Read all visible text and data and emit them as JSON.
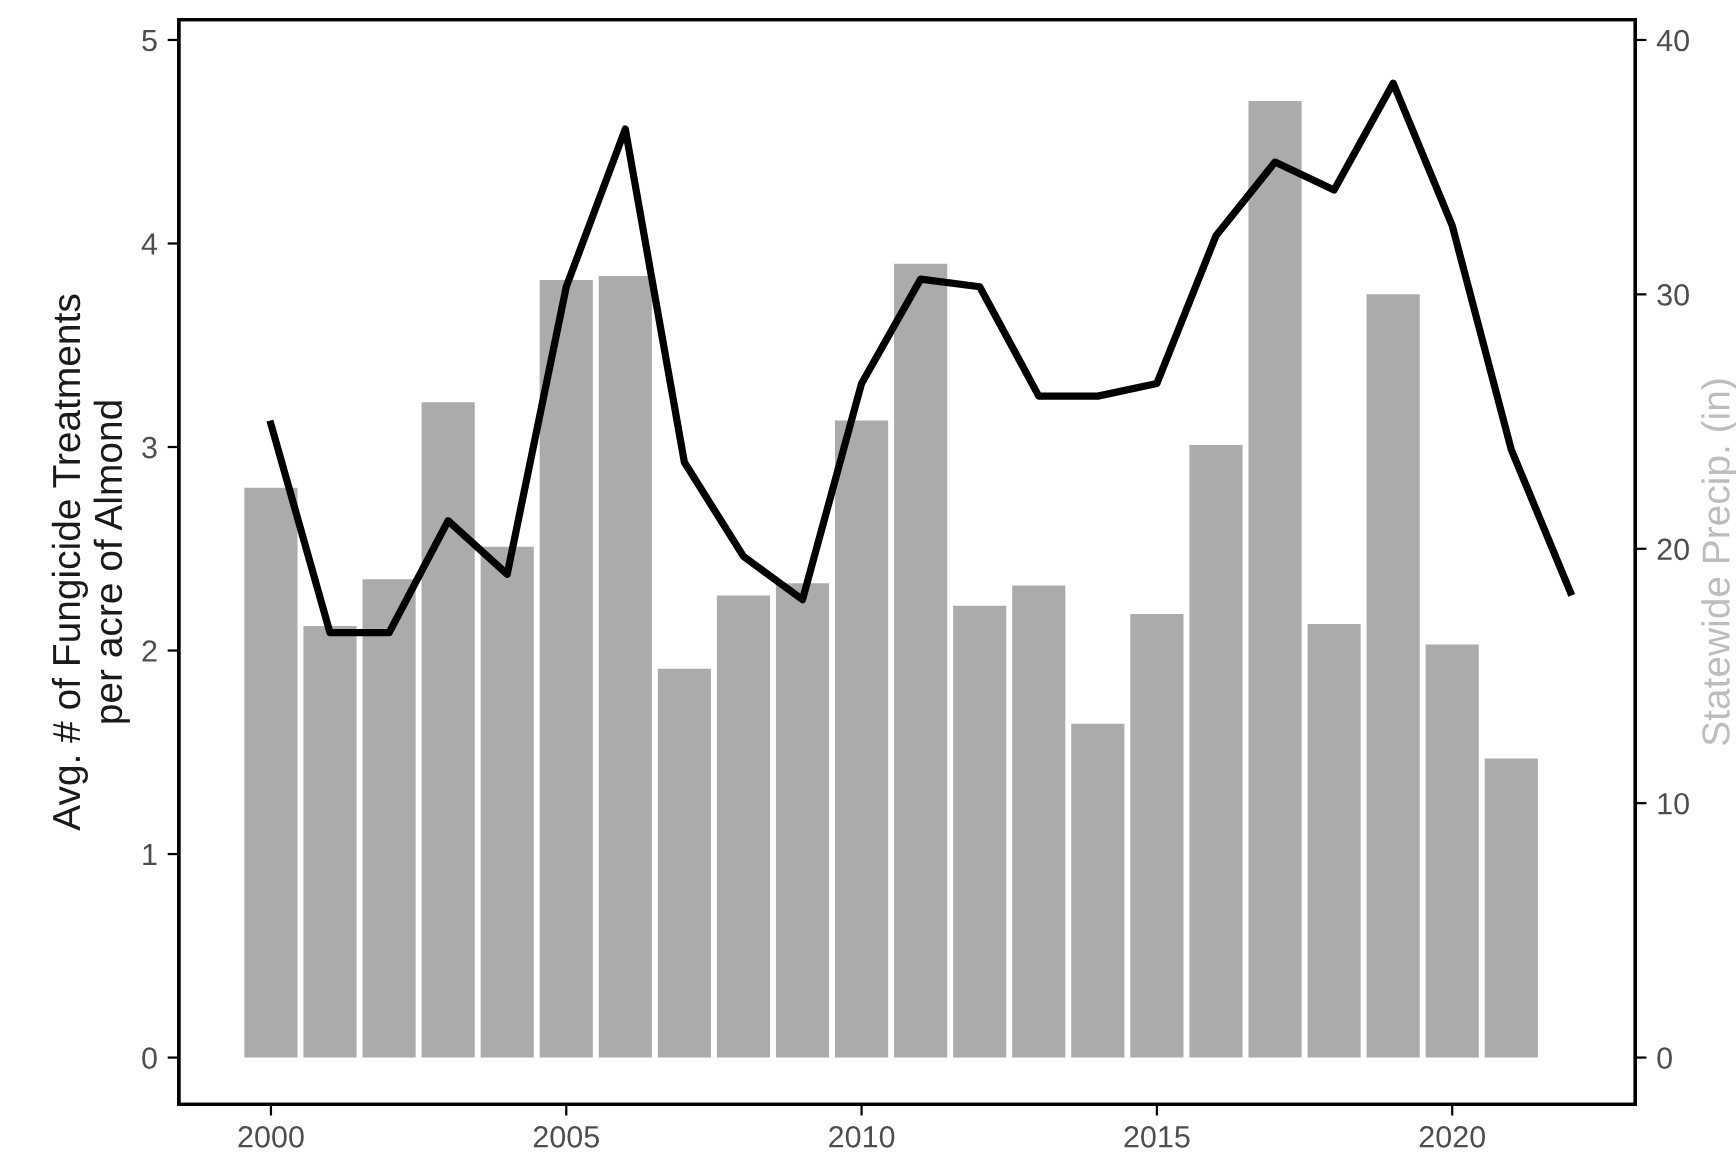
{
  "chart_data": {
    "type": "bar",
    "x": [
      2000,
      2001,
      2002,
      2003,
      2004,
      2005,
      2006,
      2007,
      2008,
      2009,
      2010,
      2011,
      2012,
      2013,
      2014,
      2015,
      2016,
      2017,
      2018,
      2019,
      2020,
      2021
    ],
    "ylabel": "Avg. # of Fungicide Treatments\nper acre of Almond",
    "y2label": "Statewide Precip. (in)",
    "series": [
      {
        "color": "#ababab",
        "values": [
          2.8,
          2.12,
          2.35,
          3.22,
          2.51,
          3.82,
          3.84,
          1.91,
          2.27,
          2.33,
          3.13,
          3.9,
          2.22,
          2.32,
          1.64,
          2.18,
          3.01,
          4.7,
          2.13,
          3.75,
          2.03,
          1.47
        ]
      },
      {
        "type": "line",
        "axis": "y2",
        "color": "#000000",
        "x": [
          2000,
          2001,
          2002,
          2003,
          2004,
          2005,
          2006,
          2007,
          2008,
          2009,
          2010,
          2011,
          2012,
          2013,
          2014,
          2015,
          2016,
          2017,
          2018,
          2019,
          2020,
          2021,
          2022
        ],
        "values": [
          24.9,
          16.7,
          16.7,
          21.1,
          19.0,
          30.3,
          36.5,
          23.4,
          19.7,
          18.0,
          26.5,
          30.6,
          30.3,
          26.0,
          26.0,
          26.5,
          32.3,
          35.2,
          34.1,
          38.3,
          32.7,
          23.9,
          18.3
        ]
      }
    ],
    "xlim": [
      1998.44,
      2023.1
    ],
    "xticks": [
      2000,
      2005,
      2010,
      2015,
      2020
    ],
    "ylim": [
      -0.23,
      5.1
    ],
    "yticks": [
      0,
      1,
      2,
      3,
      4,
      5
    ],
    "y2lim": [
      -1.84,
      40.8
    ],
    "y2ticks": [
      0,
      10,
      20,
      30,
      40
    ],
    "grid": false,
    "legend": false
  }
}
